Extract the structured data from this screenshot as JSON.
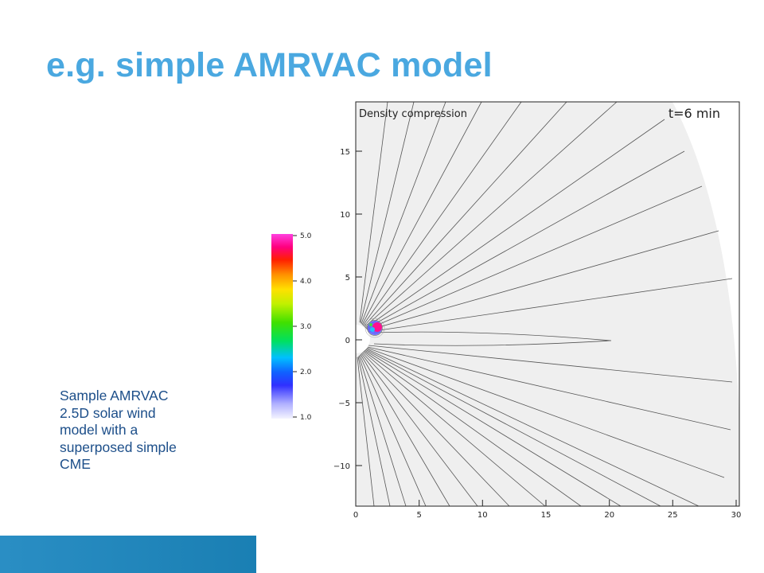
{
  "slide": {
    "title": "e.g. simple AMRVAC model",
    "caption_lines": [
      "Sample AMRVAC",
      "2.5D solar wind",
      "model with a",
      "superposed simple",
      "CME"
    ]
  },
  "figure": {
    "plot_title": "Density compression",
    "time_label": "t=6 min",
    "x_ticks": [
      "0",
      "5",
      "10",
      "15",
      "20",
      "25",
      "30"
    ],
    "y_ticks": [
      "15",
      "10",
      "5",
      "0",
      "−5",
      "−10"
    ],
    "colorbar_ticks": [
      "5.0",
      "4.0",
      "3.0",
      "2.0",
      "1.0"
    ]
  },
  "colors": {
    "title": "#4aa8e0",
    "caption": "#1d4f8a",
    "footer_bar": "#2a8ec4",
    "plot_background": "#efefef",
    "field_lines": "#555555"
  }
}
